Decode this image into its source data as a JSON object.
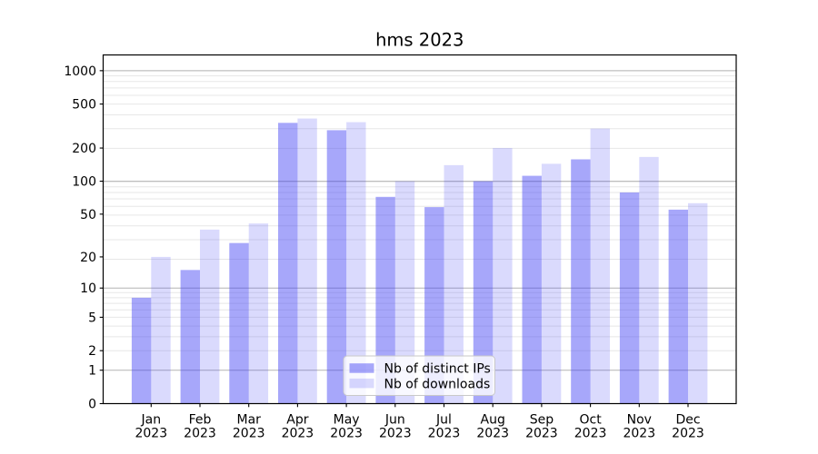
{
  "chart_data": {
    "type": "bar",
    "title": "hms 2023",
    "categories": [
      "Jan",
      "Feb",
      "Mar",
      "Apr",
      "May",
      "Jun",
      "Jul",
      "Aug",
      "Sep",
      "Oct",
      "Nov",
      "Dec"
    ],
    "year_label": "2023",
    "series": [
      {
        "name": "Nb of distinct IPs",
        "color": "rgba(60,60,245,0.45)",
        "values": [
          8,
          15,
          27,
          338,
          290,
          72,
          58,
          100,
          112,
          158,
          79,
          55
        ]
      },
      {
        "name": "Nb of downloads",
        "color": "rgba(60,60,245,0.19)",
        "values": [
          20,
          36,
          41,
          370,
          343,
          100,
          140,
          200,
          144,
          300,
          166,
          63
        ]
      }
    ],
    "yscale": "log1p",
    "ylim": [
      0,
      1350
    ],
    "yticks": [
      0,
      1,
      2,
      5,
      10,
      20,
      50,
      100,
      200,
      500,
      1000
    ],
    "major_gridlines": [
      1,
      10,
      100,
      1000
    ],
    "grid": true,
    "legend_position": "lower center",
    "colors": {
      "major_grid": "#b4b4b4",
      "minor_grid": "#e7e7e7",
      "axis": "#000000",
      "legend_border": "#c9c9c9",
      "background": "#ffffff"
    }
  }
}
